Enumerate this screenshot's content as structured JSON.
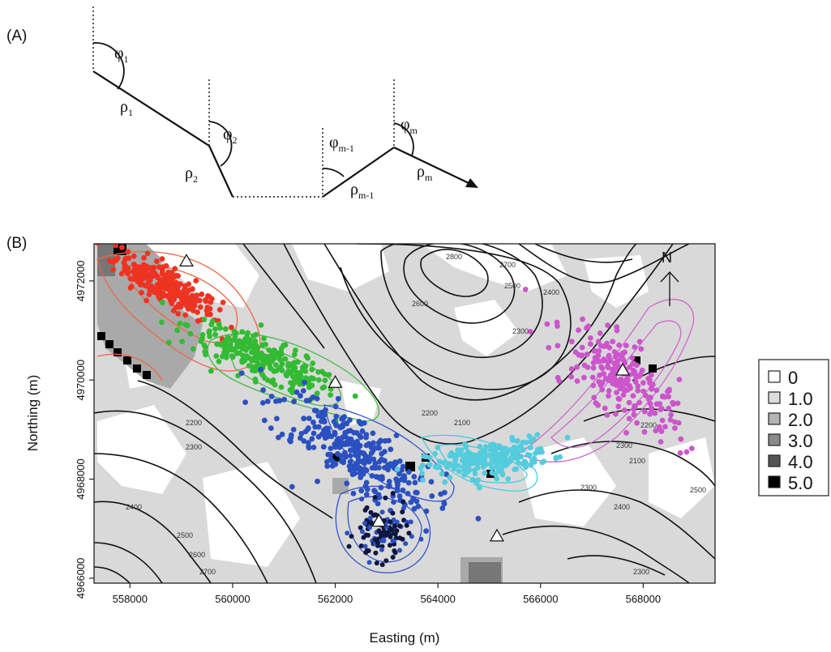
{
  "panel_a": {
    "label": "(A)",
    "angle_symbol": "φ",
    "length_symbol": "ρ",
    "angle_subscripts": [
      "1",
      "2",
      "m-1",
      "m"
    ],
    "length_subscripts": [
      "1",
      "2",
      "m-1",
      "m"
    ]
  },
  "panel_b": {
    "label": "(B)",
    "north_label": "N",
    "chart_data": {
      "type": "scatter",
      "xlabel": "Easting (m)",
      "ylabel": "Northing (m)",
      "xlim": [
        557300,
        569400
      ],
      "ylim": [
        4965900,
        4972750
      ],
      "x_ticks": [
        "558000",
        "560000",
        "562000",
        "564000",
        "566000",
        "568000"
      ],
      "y_ticks": [
        "4966000",
        "4968000",
        "4970000",
        "4972000"
      ],
      "contour_labels": [
        "2800",
        "2700",
        "2600",
        "2500",
        "2400",
        "2300",
        "2200",
        "2100",
        "2200",
        "2300",
        "2400",
        "2500",
        "2600",
        "2700",
        "2300",
        "2200",
        "2100",
        "2300",
        "2400",
        "2500",
        "2300"
      ],
      "series": [
        {
          "color": "#ee3322",
          "center": [
            558700,
            4971900
          ],
          "spread": [
            550,
            380
          ],
          "count": 260
        },
        {
          "color": "#33bb33",
          "center": [
            560600,
            4970400
          ],
          "spread": [
            800,
            420
          ],
          "count": 260
        },
        {
          "color": "#2b50c0",
          "center": [
            562300,
            4968600
          ],
          "spread": [
            900,
            700
          ],
          "count": 300
        },
        {
          "color": "#55ccdd",
          "center": [
            565000,
            4968400
          ],
          "spread": [
            600,
            380
          ],
          "count": 230
        },
        {
          "color": "#cc55cc",
          "center": [
            567600,
            4970000
          ],
          "spread": [
            700,
            650
          ],
          "count": 230
        }
      ],
      "triangles": [
        [
          559100,
          4972400
        ],
        [
          562000,
          4969950
        ],
        [
          562850,
          4967150
        ],
        [
          565150,
          4966850
        ],
        [
          567600,
          4970200
        ]
      ],
      "legend": {
        "values": [
          "0",
          "1.0",
          "2.0",
          "3.0",
          "4.0",
          "5.0"
        ],
        "colors": [
          "#ffffff",
          "#dcdcdc",
          "#b4b4b4",
          "#8a8a8a",
          "#555555",
          "#000000"
        ]
      }
    }
  }
}
